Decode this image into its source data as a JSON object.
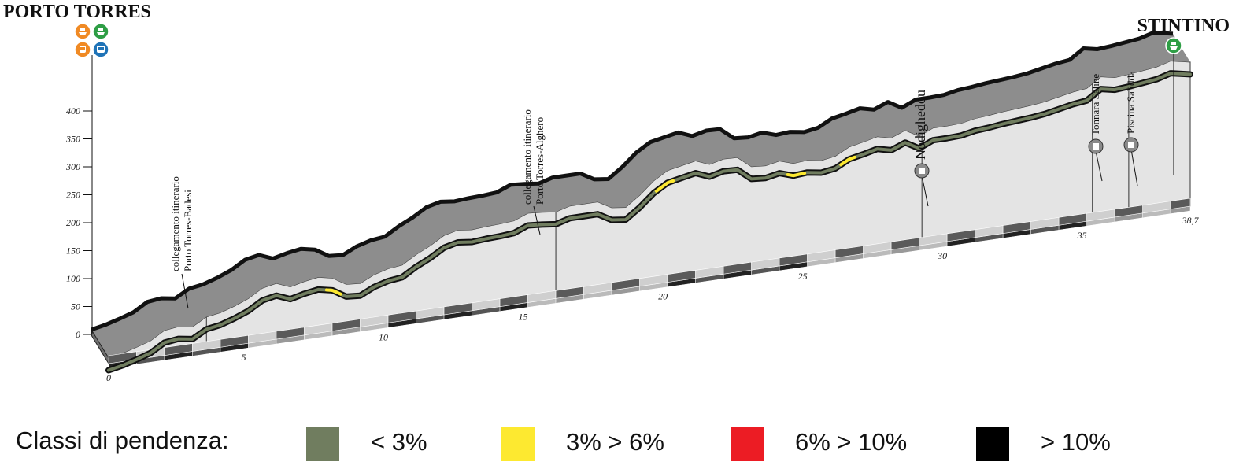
{
  "chart_data": {
    "type": "area",
    "title": "",
    "start_label": "PORTO TORRES",
    "end_label": "STINTINO",
    "start_icons": [
      "ship-icon",
      "ship-icon",
      "train-icon",
      "bus-icon"
    ],
    "start_icon_colors": [
      "#f08a24",
      "#2e9e45",
      "#f08a24",
      "#1f73b7"
    ],
    "end_icons": [
      "ship-icon"
    ],
    "end_icon_colors": [
      "#2e9e45"
    ],
    "xlabel": "",
    "ylabel": "",
    "xlim": [
      0,
      38.7
    ],
    "ylim": [
      0,
      400
    ],
    "x_ticks": [
      "0",
      "5",
      "10",
      "15",
      "20",
      "25",
      "30",
      "35",
      "38,7"
    ],
    "y_ticks": [
      "0",
      "50",
      "100",
      "150",
      "200",
      "250",
      "300",
      "350",
      "400"
    ],
    "elevation_profile": {
      "x": [
        0,
        0.5,
        1,
        1.5,
        2,
        2.5,
        3,
        3.5,
        4,
        4.5,
        5,
        5.5,
        6,
        6.5,
        7,
        7.5,
        8,
        8.5,
        9,
        9.5,
        10,
        10.5,
        11,
        11.5,
        12,
        12.5,
        13,
        13.5,
        14,
        14.5,
        15,
        15.5,
        16,
        16.5,
        17,
        17.5,
        18,
        18.5,
        19,
        19.5,
        20,
        20.5,
        21,
        21.5,
        22,
        22.5,
        23,
        23.5,
        24,
        24.5,
        25,
        25.5,
        26,
        26.5,
        27,
        27.5,
        28,
        28.5,
        29,
        29.5,
        30,
        30.5,
        31,
        31.5,
        32,
        32.5,
        33,
        33.5,
        34,
        34.5,
        35,
        35.5,
        36,
        36.5,
        37,
        37.5,
        38,
        38.7
      ],
      "y": [
        10,
        15,
        22,
        30,
        45,
        48,
        44,
        58,
        62,
        70,
        80,
        95,
        100,
        90,
        96,
        100,
        95,
        80,
        78,
        90,
        97,
        100,
        115,
        127,
        142,
        148,
        145,
        147,
        148,
        150,
        160,
        158,
        155,
        162,
        162,
        162,
        148,
        145,
        163,
        185,
        200,
        205,
        210,
        200,
        206,
        205,
        185,
        183,
        188,
        180,
        182,
        178,
        182,
        195,
        200,
        206,
        200,
        210,
        196,
        207,
        207,
        208,
        213,
        215,
        218,
        220,
        222,
        225,
        230,
        235,
        238,
        255,
        250,
        252,
        255,
        258,
        265,
        258
      ]
    },
    "gradient_segments": [
      {
        "from": 7.8,
        "to": 8.3,
        "class": "3% > 6%"
      },
      {
        "from": 19.6,
        "to": 20.2,
        "class": "3% > 6%"
      },
      {
        "from": 24.3,
        "to": 24.9,
        "class": "3% > 6%"
      },
      {
        "from": 26.2,
        "to": 26.7,
        "class": "3% > 6%"
      }
    ],
    "annotations": [
      {
        "x": 3.5,
        "y": 55,
        "label": [
          "collegamento itinerario",
          "Porto Torres-Badesi"
        ],
        "icon": null,
        "big": false
      },
      {
        "x": 16,
        "y": 165,
        "label": [
          "collegamento itinerario",
          "Porto Torres-Alghero"
        ],
        "icon": null,
        "big": false
      },
      {
        "x": 29.1,
        "y": 207,
        "label": [
          "Nodigheddu"
        ],
        "icon": "building-icon",
        "big": true
      },
      {
        "x": 35.2,
        "y": 245,
        "label": [
          "Tonnara Saline"
        ],
        "icon": "building-icon",
        "big": false
      },
      {
        "x": 36.5,
        "y": 250,
        "label": [
          "Piscina Salidda"
        ],
        "icon": "building-icon",
        "big": false
      }
    ]
  },
  "legend": {
    "title": "Classi di pendenza:",
    "items": [
      {
        "label": "< 3%",
        "color": "#707d5f"
      },
      {
        "label": "3% > 6%",
        "color": "#fde930"
      },
      {
        "label": "6% > 10%",
        "color": "#ec1c24"
      },
      {
        "label": "> 10%",
        "color": "#000000"
      }
    ]
  }
}
